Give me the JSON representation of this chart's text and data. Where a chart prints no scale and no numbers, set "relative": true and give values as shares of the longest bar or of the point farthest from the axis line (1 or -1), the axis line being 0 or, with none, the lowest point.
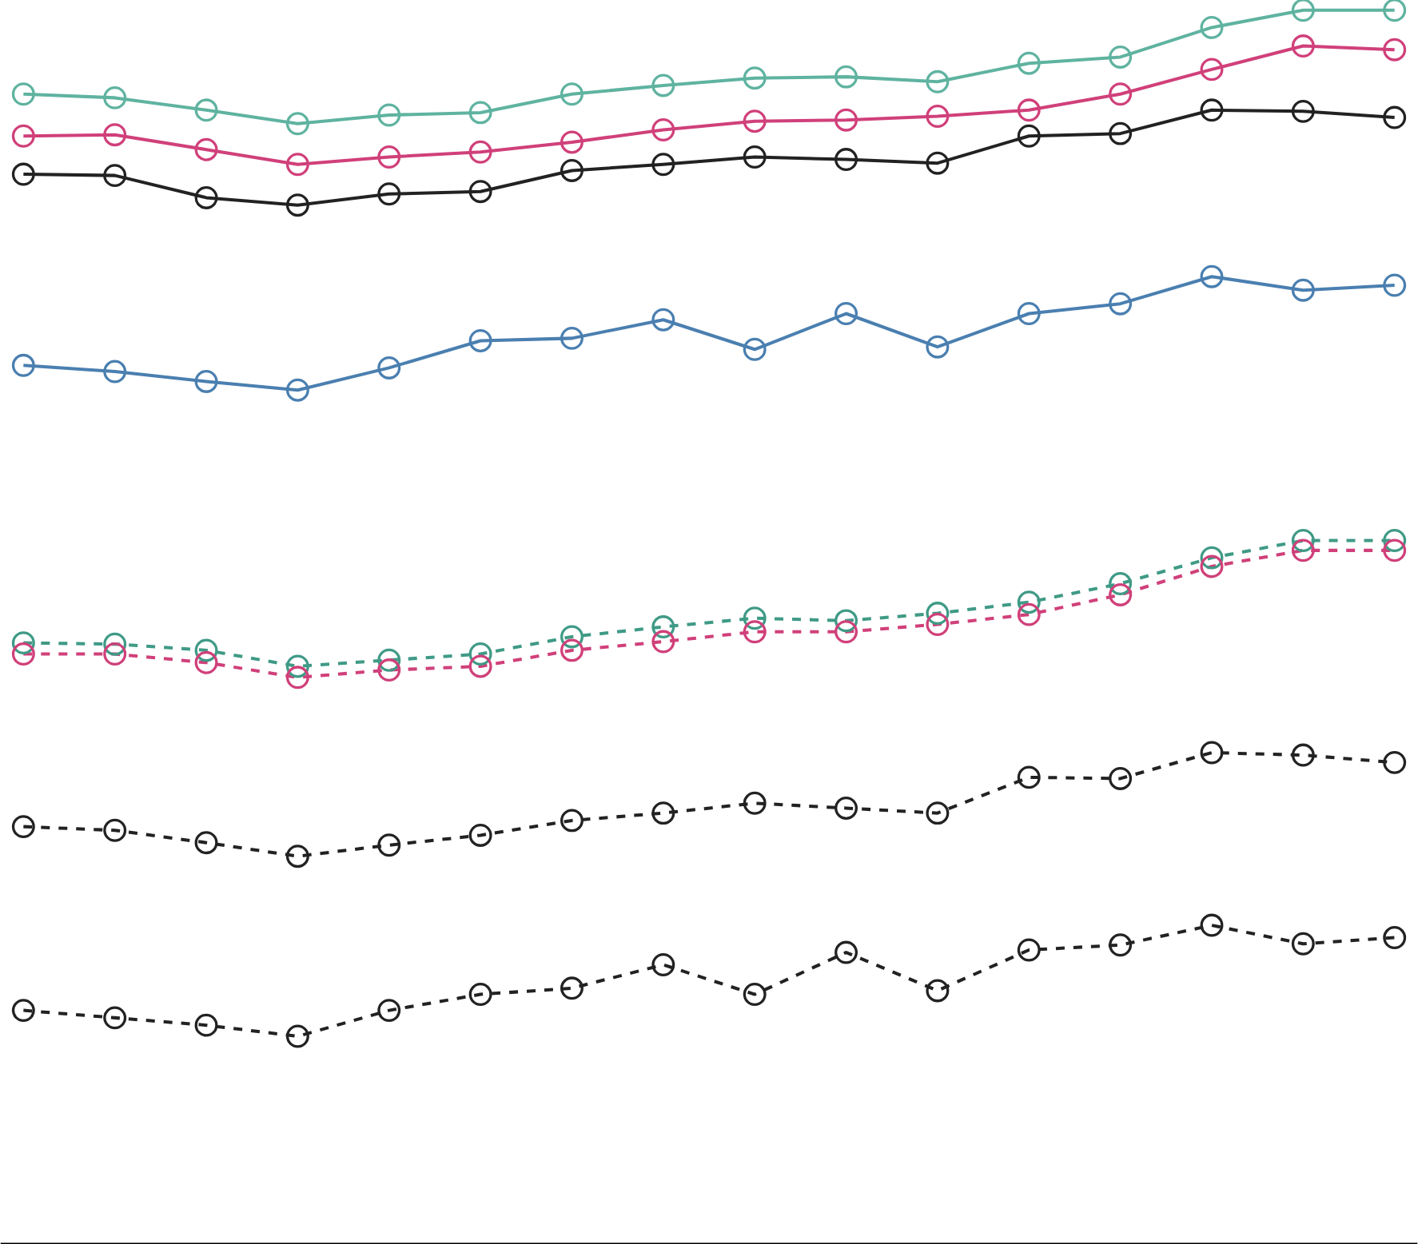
{
  "chart_data": {
    "type": "line",
    "relative": true,
    "marker": "circle",
    "categories": [
      null,
      null,
      null,
      null,
      null,
      null,
      null,
      null,
      null,
      null,
      null,
      null,
      null,
      null,
      null,
      null
    ],
    "series": [
      {
        "color": "#5fb3a0",
        "line_style": "solid",
        "values": [
          0.932,
          0.929,
          0.919,
          0.908,
          0.915,
          0.917,
          0.932,
          0.939,
          0.945,
          0.946,
          0.942,
          0.957,
          0.962,
          0.986,
          1,
          1
        ]
      },
      {
        "color": "#d0407a",
        "line_style": "solid",
        "values": [
          0.898,
          0.899,
          0.887,
          0.875,
          0.881,
          0.885,
          0.893,
          0.903,
          0.91,
          0.911,
          0.914,
          0.919,
          0.932,
          0.952,
          0.971,
          0.968
        ]
      },
      {
        "color": "#222222",
        "line_style": "solid",
        "values": [
          0.867,
          0.866,
          0.848,
          0.842,
          0.851,
          0.853,
          0.87,
          0.875,
          0.881,
          0.879,
          0.876,
          0.898,
          0.9,
          0.919,
          0.918,
          0.913
        ]
      },
      {
        "color": "#4a7fb0",
        "line_style": "solid",
        "values": [
          0.712,
          0.707,
          0.699,
          0.692,
          0.71,
          0.732,
          0.734,
          0.749,
          0.725,
          0.754,
          0.727,
          0.754,
          0.762,
          0.784,
          0.773,
          0.777
        ]
      },
      {
        "color": "#3f9a86",
        "line_style": "dashed",
        "values": [
          0.487,
          0.486,
          0.481,
          0.468,
          0.473,
          0.478,
          0.492,
          0.5,
          0.507,
          0.505,
          0.511,
          0.52,
          0.535,
          0.556,
          0.57,
          0.57
        ]
      },
      {
        "color": "#d0407a",
        "line_style": "dashed",
        "values": [
          0.478,
          0.478,
          0.471,
          0.459,
          0.465,
          0.468,
          0.481,
          0.488,
          0.496,
          0.496,
          0.502,
          0.51,
          0.526,
          0.549,
          0.562,
          0.562
        ]
      },
      {
        "color": "#222222",
        "line_style": "dashed",
        "values": [
          0.338,
          0.335,
          0.325,
          0.314,
          0.323,
          0.331,
          0.343,
          0.349,
          0.357,
          0.353,
          0.349,
          0.378,
          0.377,
          0.398,
          0.396,
          0.39
        ]
      },
      {
        "color": "#222222",
        "line_style": "dashed",
        "values": [
          0.189,
          0.183,
          0.177,
          0.168,
          0.189,
          0.202,
          0.207,
          0.226,
          0.202,
          0.236,
          0.205,
          0.238,
          0.242,
          0.258,
          0.243,
          0.248
        ]
      }
    ]
  }
}
